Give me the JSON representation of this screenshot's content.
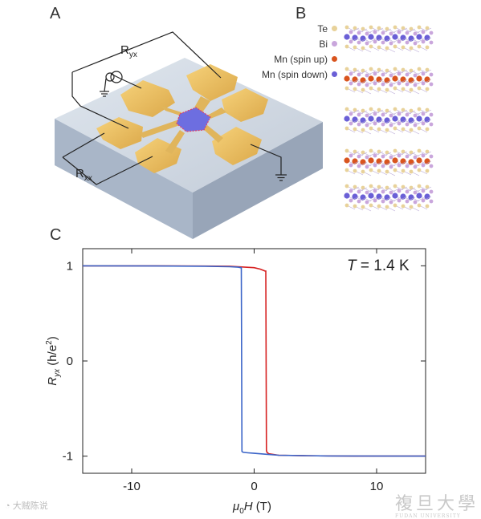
{
  "panels": {
    "a": "A",
    "b": "B",
    "c": "C"
  },
  "device": {
    "label_ryx_main": "R",
    "label_ryx_sub": "yx",
    "label_rxx_main": "R",
    "label_rxx_sub": "xx"
  },
  "crystal_legend": [
    {
      "label": "Te",
      "color": "#e8d29a"
    },
    {
      "label": "Bi",
      "color": "#c9a6dc"
    },
    {
      "label": "Mn (spin up)",
      "color": "#d9541e"
    },
    {
      "label": "Mn (spin down)",
      "color": "#6a5fd6"
    }
  ],
  "watermarks": {
    "left": "大贼陈说",
    "right_big": "複旦大學",
    "right_small": "FUDAN UNIVERSITY"
  },
  "chart_data": {
    "type": "line",
    "annotation": "T = 1.4 K",
    "annotation_var": "T",
    "annotation_rest": " = 1.4 K",
    "xlabel_main": "μ",
    "xlabel_sub": "0",
    "xlabel_rest": "H (T)",
    "ylabel_main": "R",
    "ylabel_sub": "yx",
    "ylabel_rest": " (h/e",
    "ylabel_sup": "2",
    "ylabel_end": ")",
    "xlim": [
      -14,
      14
    ],
    "ylim": [
      -1.18,
      1.18
    ],
    "xticks": [
      -10,
      0,
      10
    ],
    "xtick_labels": [
      "-10",
      "0",
      "10"
    ],
    "yticks": [
      -1,
      0,
      1
    ],
    "ytick_labels": [
      "-1",
      "0",
      "1"
    ],
    "series": [
      {
        "color": "#d62020",
        "x": [
          -14,
          -8,
          -2,
          0,
          0.5,
          0.9,
          0.95,
          1.0,
          1.05,
          1.2,
          2,
          4,
          8,
          14
        ],
        "y": [
          1.0,
          1.0,
          0.995,
          0.98,
          0.965,
          0.945,
          0.945,
          -0.94,
          -0.96,
          -0.975,
          -0.99,
          -0.995,
          -1.0,
          -1.0
        ]
      },
      {
        "color": "#3a64c8",
        "x": [
          -14,
          -8,
          -4,
          -2,
          -1.3,
          -1.1,
          -1.05,
          -1.0,
          -0.9,
          -0.5,
          0,
          1,
          2,
          6,
          14
        ],
        "y": [
          1.0,
          0.998,
          0.995,
          0.99,
          0.985,
          0.98,
          0.98,
          -0.95,
          -0.96,
          -0.965,
          -0.97,
          -0.98,
          -0.99,
          -0.998,
          -1.0
        ]
      }
    ]
  }
}
